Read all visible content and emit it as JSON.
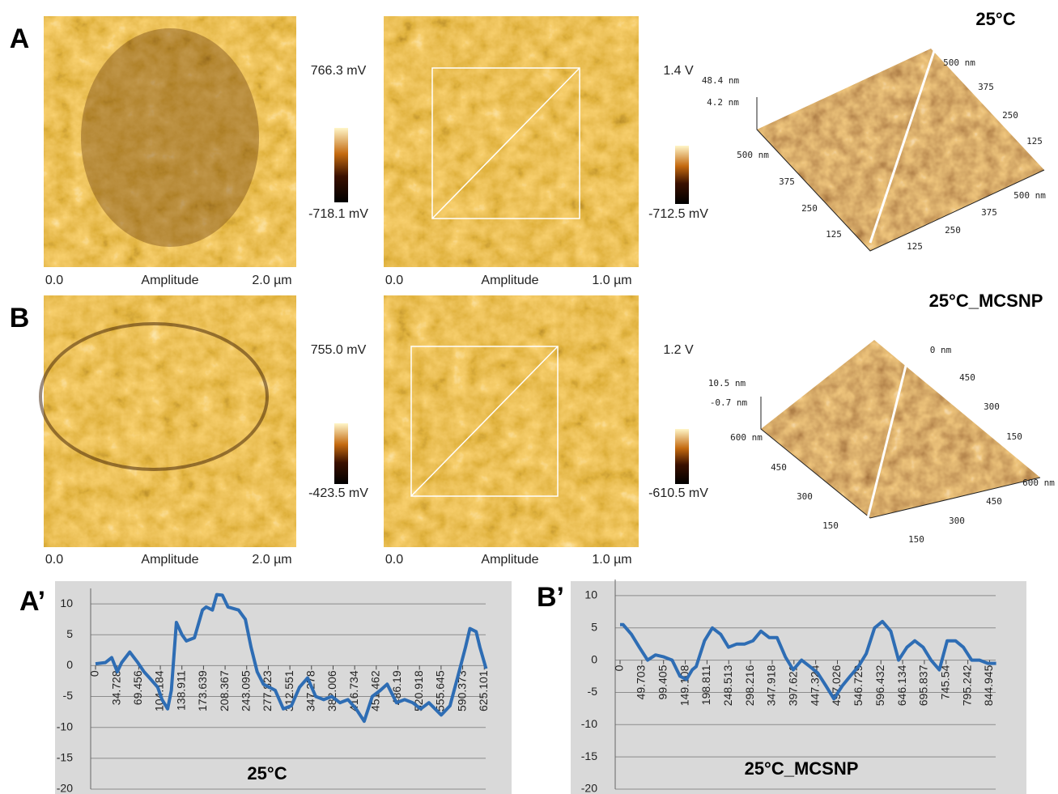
{
  "panels": [
    {
      "label": "A",
      "images": [
        {
          "scale_max": "766.3 mV",
          "scale_min": "-718.1 mV",
          "x_start": "0.0",
          "x_label": "Amplitude",
          "x_end": "2.0 µm"
        },
        {
          "scale_max": "1.4 V",
          "scale_min": "-712.5 mV",
          "x_start": "0.0",
          "x_label": "Amplitude",
          "x_end": "1.0 µm"
        }
      ],
      "surface": {
        "title": "25°C",
        "z_labels": [
          "48.4 nm",
          "4.2 nm"
        ],
        "left_axis": [
          "500 nm",
          "375",
          "250",
          "125"
        ],
        "right_axis": [
          "125",
          "250",
          "375",
          "500 nm"
        ],
        "back_axis": [
          "500 nm",
          "375",
          "250",
          "125"
        ]
      }
    },
    {
      "label": "B",
      "images": [
        {
          "scale_max": "755.0 mV",
          "scale_min": "-423.5 mV",
          "x_start": "0.0",
          "x_label": "Amplitude",
          "x_end": "2.0 µm"
        },
        {
          "scale_max": "1.2 V",
          "scale_min": "-610.5 mV",
          "x_start": "0.0",
          "x_label": "Amplitude",
          "x_end": "1.0 µm"
        }
      ],
      "surface": {
        "title": "25°C_MCSNP",
        "z_labels": [
          "10.5 nm",
          "-0.7 nm"
        ],
        "left_axis": [
          "600 nm",
          "450",
          "300",
          "150"
        ],
        "right_axis": [
          "150",
          "300",
          "450",
          "600 nm"
        ],
        "back_axis": [
          "0 nm",
          "450",
          "300",
          "150"
        ]
      }
    }
  ],
  "chart_data": [
    {
      "type": "line",
      "label": "A’",
      "title": "25°C",
      "color": "#2e6db4",
      "grid": true,
      "x": [
        0,
        16,
        26,
        35,
        42,
        55,
        68,
        78,
        87,
        100,
        107,
        116,
        122,
        130,
        139,
        146,
        159,
        172,
        178,
        188,
        195,
        204,
        213,
        230,
        241,
        250,
        260,
        270,
        289,
        302,
        315,
        328,
        341,
        354,
        367,
        380,
        393,
        406,
        419,
        432,
        445,
        458,
        469,
        484,
        497,
        510,
        523,
        536,
        556,
        570,
        582,
        595,
        602,
        612,
        618,
        628
      ],
      "values": [
        0.3,
        0.5,
        1.3,
        -1,
        0.5,
        2.2,
        0.5,
        -1,
        -2,
        -3.5,
        -5.5,
        -7,
        -4,
        7,
        5,
        4,
        4.5,
        9,
        9.5,
        9,
        11.5,
        11.4,
        9.5,
        9,
        7.5,
        3,
        -1,
        -3,
        -4,
        -7,
        -6.5,
        -3.5,
        -2,
        -5,
        -5.5,
        -5,
        -6,
        -5.5,
        -7,
        -9,
        -5,
        -4,
        -3,
        -6,
        -5.5,
        -6,
        -7,
        -6,
        -8,
        -6.5,
        -2,
        3,
        6,
        5.5,
        3,
        -0.5
      ],
      "xlim": [
        0,
        630
      ],
      "xticks": [
        0,
        34.728,
        69.456,
        104.184,
        138.911,
        173.639,
        208.367,
        243.095,
        277.823,
        312.551,
        347.278,
        382.006,
        416.734,
        451.462,
        486.19,
        520.918,
        555.645,
        590.373,
        625.101
      ],
      "ylim": [
        -20,
        12.5
      ],
      "yticks": [
        10,
        5,
        0,
        -5,
        -10,
        -15,
        -20
      ]
    },
    {
      "type": "line",
      "label": "B’",
      "title": "25°C_MCSNP",
      "color": "#2e6db4",
      "grid": true,
      "x": [
        0,
        7,
        26,
        44,
        63,
        81,
        100,
        119,
        137,
        152,
        165,
        174,
        193,
        211,
        230,
        248,
        267,
        285,
        304,
        322,
        341,
        359,
        378,
        396,
        415,
        434,
        452,
        471,
        489,
        508,
        526,
        545,
        563,
        582,
        600,
        619,
        637,
        656,
        674,
        693,
        711,
        730,
        748,
        767,
        785,
        804,
        822,
        841,
        860
      ],
      "values": [
        5.5,
        5.5,
        4,
        2,
        0,
        0.8,
        0.5,
        0,
        -2.5,
        -3,
        -1.5,
        -1,
        3,
        5,
        4,
        2,
        2.5,
        2.5,
        3,
        4.5,
        3.5,
        3.5,
        0.5,
        -1.5,
        0,
        -1,
        -2,
        -4,
        -6,
        -4,
        -2.5,
        -1,
        1,
        5,
        6,
        4.5,
        0,
        2,
        3,
        2,
        0,
        -1.5,
        3,
        3,
        2,
        0,
        0,
        -0.5,
        -0.5
      ],
      "xlim": [
        0,
        870
      ],
      "xticks": [
        0,
        49.703,
        99.405,
        149.108,
        198.811,
        248.513,
        298.216,
        347.918,
        397.621,
        447.324,
        497.026,
        546.729,
        596.432,
        646.134,
        695.837,
        745.54,
        795.242,
        844.945
      ],
      "ylim": [
        -20,
        12.5
      ],
      "yticks": [
        10,
        5,
        0,
        -5,
        -10,
        -15,
        -20
      ]
    }
  ]
}
